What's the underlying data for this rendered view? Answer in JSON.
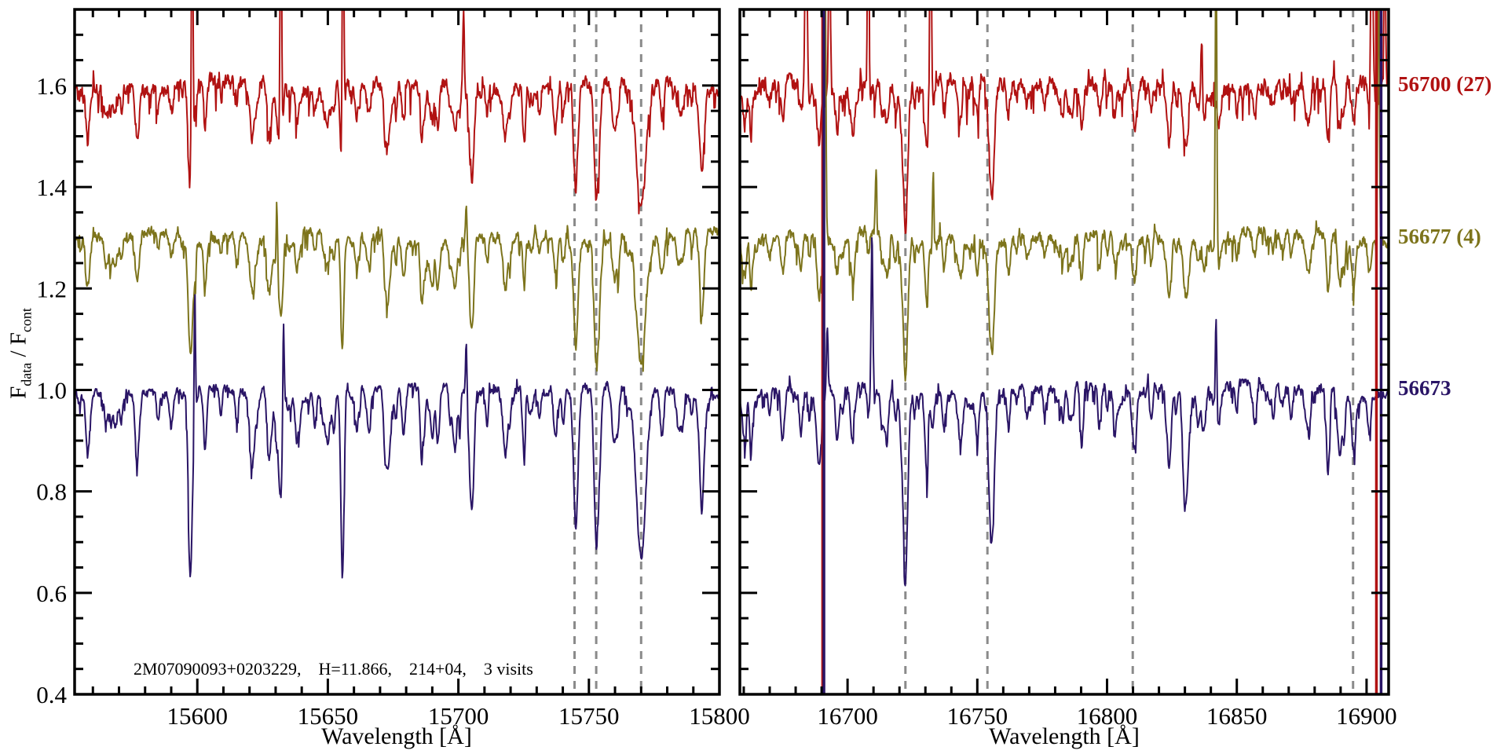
{
  "figure": {
    "annotation": "2M07090093+0203229,    H=11.866,    214+04,    3 visits",
    "xlabel": "Wavelength [Å]",
    "ylabel": {
      "base1": "F",
      "sub1": "data",
      "base2": " / F",
      "sub2": "cont"
    },
    "colors": {
      "background": "#ffffff",
      "axis": "#000000",
      "sky_line": "#8a8a8a"
    }
  },
  "chart_data": {
    "type": "line",
    "title": "2M07090093+0203229, H=11.866, 214+04, 3 visits",
    "xlabel": "Wavelength [Å]",
    "ylabel": "F_data / F_cont",
    "ylim": [
      0.4,
      1.75
    ],
    "yticks": [
      0.4,
      0.6,
      0.8,
      1.0,
      1.2,
      1.4,
      1.6
    ],
    "ytick_labels": [
      "0.4",
      "0.6",
      "0.8",
      "1.0",
      "1.2",
      "1.4",
      "1.6"
    ],
    "y_minor_step": 0.05,
    "x_minor_step": 10,
    "panels": [
      {
        "id": "left",
        "xlim": [
          15553,
          15800
        ],
        "xticks": [
          15600,
          15650,
          15700,
          15750,
          15800
        ],
        "xtick_labels": [
          "15600",
          "15650",
          "15700",
          "15750",
          "15800"
        ],
        "sky_dashed_lines": [
          15744.5,
          15752.8,
          15770
        ],
        "absorption_lines": [
          [
            15558,
            0.1,
            0.8
          ],
          [
            15565,
            0.07,
            0.6
          ],
          [
            15571,
            0.06,
            0.5
          ],
          [
            15577,
            0.13,
            0.8
          ],
          [
            15585,
            0.05,
            0.5
          ],
          [
            15590,
            0.07,
            0.6
          ],
          [
            15597.5,
            0.22,
            0.7
          ],
          [
            15603,
            0.1,
            0.7
          ],
          [
            15609,
            0.05,
            0.5
          ],
          [
            15615,
            0.06,
            0.5
          ],
          [
            15621,
            0.14,
            0.9
          ],
          [
            15627,
            0.06,
            0.5
          ],
          [
            15632,
            0.2,
            0.8
          ],
          [
            15638,
            0.07,
            0.6
          ],
          [
            15645,
            0.06,
            0.5
          ],
          [
            15650,
            0.08,
            0.6
          ],
          [
            15655.5,
            0.3,
            0.6
          ],
          [
            15661,
            0.08,
            0.6
          ],
          [
            15666,
            0.06,
            0.5
          ],
          [
            15673,
            0.16,
            1.0
          ],
          [
            15679,
            0.09,
            0.7
          ],
          [
            15686,
            0.05,
            0.5
          ],
          [
            15692,
            0.07,
            0.6
          ],
          [
            15699,
            0.09,
            0.7
          ],
          [
            15705,
            0.19,
            0.8
          ],
          [
            15711,
            0.06,
            0.5
          ],
          [
            15718,
            0.13,
            0.9
          ],
          [
            15725,
            0.08,
            0.6
          ],
          [
            15731,
            0.05,
            0.5
          ],
          [
            15737,
            0.07,
            0.6
          ],
          [
            15745,
            0.26,
            0.9
          ],
          [
            15753,
            0.3,
            0.9
          ],
          [
            15760,
            0.1,
            0.7
          ],
          [
            15770,
            0.33,
            1.8
          ],
          [
            15778,
            0.09,
            0.7
          ],
          [
            15786,
            0.06,
            0.6
          ],
          [
            15793,
            0.08,
            0.7
          ]
        ]
      },
      {
        "id": "right",
        "xlim": [
          16658.5,
          16908.5
        ],
        "xticks": [
          16700,
          16750,
          16800,
          16850,
          16900
        ],
        "xtick_labels": [
          "16700",
          "16750",
          "16800",
          "16850",
          "16900"
        ],
        "sky_dashed_lines": [
          16722.3,
          16753.9,
          16809.9,
          16894.8
        ],
        "absorption_lines": [
          [
            16663,
            0.07,
            0.6
          ],
          [
            16670,
            0.05,
            0.5
          ],
          [
            16675,
            0.1,
            0.7
          ],
          [
            16682,
            0.08,
            0.6
          ],
          [
            16689,
            0.14,
            0.9
          ],
          [
            16696,
            0.09,
            0.7
          ],
          [
            16702,
            0.11,
            0.8
          ],
          [
            16708,
            0.06,
            0.5
          ],
          [
            16715,
            0.09,
            0.7
          ],
          [
            16722.5,
            0.27,
            0.9
          ],
          [
            16730,
            0.08,
            0.6
          ],
          [
            16737,
            0.06,
            0.5
          ],
          [
            16744,
            0.07,
            0.6
          ],
          [
            16750,
            0.08,
            0.6
          ],
          [
            16755.5,
            0.3,
            1.0
          ],
          [
            16762,
            0.08,
            0.6
          ],
          [
            16769,
            0.06,
            0.5
          ],
          [
            16776,
            0.05,
            0.5
          ],
          [
            16783,
            0.06,
            0.5
          ],
          [
            16790,
            0.07,
            0.6
          ],
          [
            16797,
            0.06,
            0.5
          ],
          [
            16803,
            0.08,
            0.7
          ],
          [
            16810.5,
            0.11,
            0.8
          ],
          [
            16817,
            0.06,
            0.5
          ],
          [
            16824,
            0.08,
            0.6
          ],
          [
            16830,
            0.12,
            0.9
          ],
          [
            16837,
            0.07,
            0.6
          ],
          [
            16843,
            0.06,
            0.5
          ],
          [
            16850,
            0.05,
            0.5
          ],
          [
            16857,
            0.07,
            0.6
          ],
          [
            16864,
            0.06,
            0.5
          ],
          [
            16871,
            0.05,
            0.5
          ],
          [
            16878,
            0.06,
            0.5
          ],
          [
            16885,
            0.07,
            0.6
          ],
          [
            16890,
            0.09,
            0.7
          ],
          [
            16895,
            0.11,
            0.8
          ],
          [
            16901,
            0.07,
            0.6
          ]
        ]
      }
    ],
    "series": [
      {
        "label": "56700 (27)",
        "mjd": "56700",
        "color": "#b11212",
        "offset": 1.6,
        "noise": 0.021,
        "line_scale": 0.75,
        "spikes": {
          "left": [
            [
              15598,
              0.6,
              0.3
            ],
            [
              15632,
              0.6,
              0.3
            ],
            [
              15655.8,
              0.6,
              0.32
            ],
            [
              15702,
              0.14,
              0.28
            ]
          ],
          "right": [
            [
              16684,
              0.35,
              0.4
            ],
            [
              16693,
              0.32,
              0.35
            ],
            [
              16708,
              0.55,
              0.3
            ],
            [
              16732,
              0.45,
              0.33
            ],
            [
              16836.5,
              0.13,
              0.3
            ],
            [
              16902,
              0.35,
              0.4
            ],
            [
              16907,
              0.3,
              0.3
            ]
          ]
        },
        "artifact_lines": {
          "left": [],
          "right": [
            16690.4,
            16903.8
          ]
        }
      },
      {
        "label": "56677 (4)",
        "mjd": "56677",
        "color": "#7d741c",
        "offset": 1.3,
        "noise": 0.015,
        "line_scale": 0.75,
        "spikes": {
          "left": [
            [
              15630.5,
              0.16,
              0.28
            ],
            [
              15703,
              0.08,
              0.25
            ]
          ],
          "right": [
            [
              16691.4,
              0.55,
              0.3
            ],
            [
              16711,
              0.12,
              0.28
            ],
            [
              16733,
              0.18,
              0.28
            ],
            [
              16842,
              0.62,
              0.3
            ],
            [
              16904.6,
              0.6,
              0.3
            ]
          ]
        },
        "artifact_lines": {
          "left": [],
          "right": []
        }
      },
      {
        "label": "56673",
        "mjd": "56673",
        "color": "#2a1566",
        "offset": 1.0,
        "noise": 0.013,
        "line_scale": 1.0,
        "spikes": {
          "left": [
            [
              15599,
              0.3,
              0.28
            ],
            [
              15633,
              0.22,
              0.28
            ],
            [
              15703,
              0.1,
              0.25
            ],
            [
              15597.2,
              -0.07,
              0.5
            ],
            [
              15655.9,
              -0.07,
              0.5
            ]
          ],
          "right": [
            [
              16709.4,
              0.31,
              0.3
            ],
            [
              16842,
              0.19,
              0.28
            ],
            [
              16830,
              -0.1,
              0.8
            ],
            [
              16692.2,
              0.12,
              0.3
            ]
          ]
        },
        "artifact_lines": {
          "left": [],
          "right": [
            16690.9,
            16905.6
          ]
        }
      }
    ],
    "noise_seed": 56673
  }
}
